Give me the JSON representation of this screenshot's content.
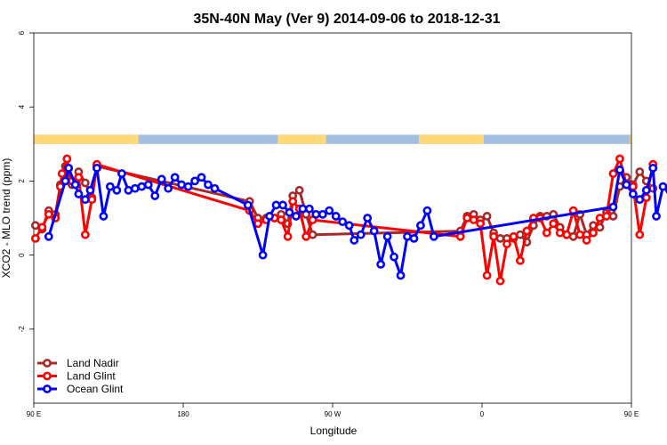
{
  "chart_data": {
    "type": "line",
    "title": "35N-40N May (Ver 9)   2014-09-06 to 2018-12-31",
    "xlabel": "Longitude",
    "ylabel": "XCO2 - MLO trend (ppm)",
    "xlim": [
      90,
      450
    ],
    "ylim": [
      -4,
      6
    ],
    "x_ticks": [
      {
        "value": 90,
        "label": "90 E"
      },
      {
        "value": 180,
        "label": "180"
      },
      {
        "value": 270,
        "label": "90 W"
      },
      {
        "value": 360,
        "label": "0"
      },
      {
        "value": 450,
        "label": "90 E"
      },
      {
        "value": 540,
        "label": "180"
      }
    ],
    "y_ticks": [
      -2,
      0,
      2,
      4,
      6
    ],
    "land_ocean_band": {
      "y_range": [
        3.0,
        3.25
      ],
      "land_color": "#FFD978",
      "ocean_color": "#A4BFE0",
      "land_segments": [
        [
          90,
          153
        ],
        [
          237,
          266
        ],
        [
          322,
          361
        ],
        [
          449,
          463
        ],
        [
          527,
          551
        ]
      ]
    },
    "legend_position": "bottom-left",
    "series": [
      {
        "name": "Land Nadir",
        "color": "#A52A2A",
        "points": [
          [
            91,
            0.8
          ],
          [
            95,
            0.7
          ],
          [
            99,
            1.2
          ],
          [
            103,
            1.1
          ],
          [
            106,
            1.9
          ],
          [
            109,
            2.4
          ],
          [
            113,
            1.9
          ],
          [
            117,
            2.25
          ],
          [
            121,
            1.95
          ],
          [
            125,
            1.55
          ],
          [
            128,
            2.4
          ],
          [
            220,
            1.45
          ],
          [
            225,
            1.0
          ],
          [
            230,
            1.0
          ],
          [
            235,
            1.0
          ],
          [
            239,
            1.1
          ],
          [
            243,
            0.85
          ],
          [
            246,
            1.6
          ],
          [
            250,
            1.75
          ],
          [
            254,
            1.1
          ],
          [
            258,
            0.55
          ],
          [
            347,
            0.65
          ],
          [
            351,
            1.05
          ],
          [
            355,
            1.1
          ],
          [
            359,
            0.95
          ],
          [
            363,
            1.05
          ],
          [
            367,
            0.6
          ],
          [
            371,
            0.45
          ],
          [
            375,
            0.45
          ],
          [
            379,
            0.45
          ],
          [
            383,
            0.55
          ],
          [
            387,
            0.35
          ],
          [
            391,
            0.8
          ],
          [
            395,
            1.05
          ],
          [
            399,
            1.05
          ],
          [
            403,
            1.1
          ],
          [
            407,
            0.75
          ],
          [
            411,
            0.55
          ],
          [
            415,
            0.5
          ],
          [
            419,
            1.1
          ],
          [
            423,
            0.55
          ],
          [
            427,
            0.8
          ],
          [
            431,
            0.75
          ],
          [
            435,
            1.15
          ],
          [
            439,
            1.05
          ],
          [
            443,
            1.85
          ],
          [
            447,
            2.1
          ],
          [
            451,
            1.9
          ],
          [
            455,
            2.25
          ],
          [
            459,
            2.0
          ],
          [
            463,
            1.8
          ]
        ]
      },
      {
        "name": "Land Glint",
        "color": "#FF0000",
        "points": [
          [
            91,
            0.45
          ],
          [
            95,
            0.75
          ],
          [
            99,
            1.1
          ],
          [
            103,
            1.0
          ],
          [
            106,
            1.85
          ],
          [
            107,
            2.2
          ],
          [
            110,
            2.6
          ],
          [
            113,
            2.0
          ],
          [
            117,
            2.1
          ],
          [
            121,
            0.55
          ],
          [
            125,
            1.5
          ],
          [
            128,
            2.45
          ],
          [
            220,
            1.2
          ],
          [
            225,
            0.85
          ],
          [
            230,
            0.95
          ],
          [
            235,
            1.0
          ],
          [
            239,
            0.95
          ],
          [
            243,
            0.5
          ],
          [
            246,
            1.45
          ],
          [
            250,
            1.25
          ],
          [
            254,
            0.5
          ],
          [
            258,
            0.95
          ],
          [
            347,
            0.5
          ],
          [
            351,
            1.0
          ],
          [
            355,
            0.95
          ],
          [
            359,
            0.85
          ],
          [
            363,
            -0.55
          ],
          [
            367,
            0.5
          ],
          [
            371,
            -0.7
          ],
          [
            375,
            0.3
          ],
          [
            379,
            0.5
          ],
          [
            383,
            -0.15
          ],
          [
            387,
            0.65
          ],
          [
            391,
            1.0
          ],
          [
            395,
            1.0
          ],
          [
            399,
            0.6
          ],
          [
            403,
            0.85
          ],
          [
            407,
            0.6
          ],
          [
            411,
            0.55
          ],
          [
            415,
            1.2
          ],
          [
            419,
            0.55
          ],
          [
            423,
            0.4
          ],
          [
            427,
            0.6
          ],
          [
            431,
            1.0
          ],
          [
            435,
            1.05
          ],
          [
            439,
            2.2
          ],
          [
            443,
            2.6
          ],
          [
            447,
            1.9
          ],
          [
            451,
            1.85
          ],
          [
            455,
            0.55
          ],
          [
            459,
            1.55
          ],
          [
            463,
            2.45
          ]
        ]
      },
      {
        "name": "Ocean Glint",
        "color": "#0000FF",
        "points": [
          [
            99,
            0.5
          ],
          [
            109,
            2.0
          ],
          [
            111,
            2.35
          ],
          [
            115,
            1.9
          ],
          [
            117,
            1.65
          ],
          [
            121,
            1.5
          ],
          [
            124,
            1.75
          ],
          [
            128,
            2.35
          ],
          [
            132,
            1.05
          ],
          [
            136,
            1.85
          ],
          [
            140,
            1.75
          ],
          [
            143,
            2.2
          ],
          [
            147,
            1.75
          ],
          [
            151,
            1.8
          ],
          [
            155,
            1.85
          ],
          [
            159,
            1.9
          ],
          [
            163,
            1.6
          ],
          [
            167,
            2.05
          ],
          [
            171,
            1.8
          ],
          [
            175,
            2.1
          ],
          [
            179,
            1.9
          ],
          [
            183,
            1.85
          ],
          [
            187,
            2.0
          ],
          [
            191,
            2.1
          ],
          [
            195,
            1.9
          ],
          [
            199,
            1.8
          ],
          [
            219,
            1.35
          ],
          [
            228,
            0.0
          ],
          [
            232,
            1.05
          ],
          [
            236,
            1.35
          ],
          [
            240,
            1.35
          ],
          [
            244,
            1.15
          ],
          [
            248,
            1.05
          ],
          [
            252,
            1.25
          ],
          [
            256,
            1.25
          ],
          [
            260,
            1.1
          ],
          [
            264,
            1.1
          ],
          [
            268,
            1.2
          ],
          [
            272,
            1.05
          ],
          [
            276,
            0.9
          ],
          [
            280,
            0.8
          ],
          [
            283,
            0.4
          ],
          [
            287,
            0.55
          ],
          [
            291,
            1.0
          ],
          [
            295,
            0.65
          ],
          [
            299,
            -0.25
          ],
          [
            303,
            0.5
          ],
          [
            307,
            -0.05
          ],
          [
            311,
            -0.55
          ],
          [
            315,
            0.5
          ],
          [
            319,
            0.45
          ],
          [
            323,
            0.8
          ],
          [
            327,
            1.2
          ],
          [
            331,
            0.5
          ],
          [
            439,
            1.3
          ],
          [
            443,
            2.3
          ],
          [
            447,
            1.9
          ],
          [
            451,
            1.65
          ],
          [
            455,
            1.5
          ],
          [
            459,
            1.75
          ],
          [
            463,
            2.35
          ],
          [
            465,
            1.05
          ],
          [
            469,
            1.85
          ],
          [
            473,
            1.75
          ],
          [
            477,
            2.2
          ],
          [
            481,
            1.75
          ],
          [
            485,
            1.8
          ],
          [
            489,
            1.85
          ]
        ]
      }
    ]
  }
}
